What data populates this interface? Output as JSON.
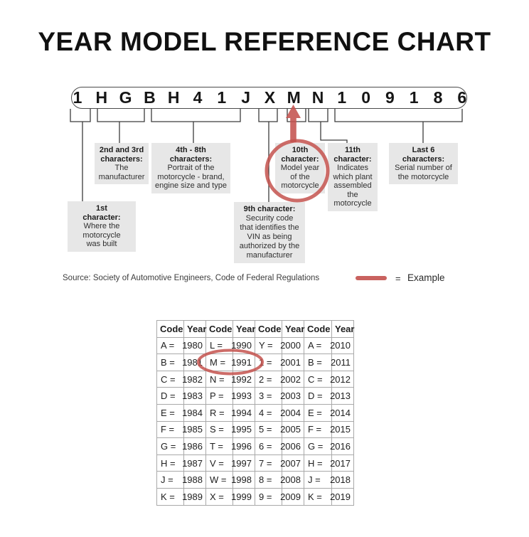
{
  "title": "YEAR MODEL REFERENCE CHART",
  "vin": {
    "chars": [
      "1",
      "H",
      "G",
      "B",
      "H",
      "4",
      "1",
      "J",
      "X",
      "M",
      "N",
      "1",
      "0",
      "9",
      "1",
      "8",
      "6"
    ]
  },
  "callouts": {
    "first": {
      "title": "1st\ncharacter:",
      "body": "Where the\nmotorcycle\nwas built"
    },
    "second_third": {
      "title": "2nd and 3rd\ncharacters:",
      "body": "The\nmanufacturer"
    },
    "fourth_eighth": {
      "title": "4th - 8th\ncharacters:",
      "body": "Portrait of the\nmotorcycle - brand,\nengine size and type"
    },
    "ninth": {
      "title": "9th character:",
      "body": "Security code\nthat identifies the\nVIN as being\nauthorized by the\nmanufacturer"
    },
    "tenth": {
      "title": "10th\ncharacter:",
      "body": "Model year\nof the\nmotorcycle"
    },
    "eleventh": {
      "title": "11th\ncharacter:",
      "body": "Indicates\nwhich plant\nassembled\nthe\nmotorcycle"
    },
    "last6": {
      "title": "Last 6\ncharacters:",
      "body": "Serial number of\nthe motorcycle"
    }
  },
  "source_line": "Source:  Society of Automotive Engineers, Code of Federal Regulations",
  "legend": {
    "equals": "=",
    "label": "Example"
  },
  "colors": {
    "accent_red": "#c4524e",
    "callout_bg": "#e7e7e7",
    "table_border": "#a9a9a9"
  },
  "table": {
    "headers": [
      "Code",
      "Year",
      "Code",
      "Year",
      "Code",
      "Year",
      "Code",
      "Year"
    ],
    "rows": [
      [
        "A =",
        "1980",
        "L =",
        "1990",
        "Y =",
        "2000",
        "A =",
        "2010"
      ],
      [
        "B =",
        "1981",
        "M =",
        "1991",
        "1 =",
        "2001",
        "B =",
        "2011"
      ],
      [
        "C =",
        "1982",
        "N =",
        "1992",
        "2 =",
        "2002",
        "C =",
        "2012"
      ],
      [
        "D =",
        "1983",
        "P =",
        "1993",
        "3 =",
        "2003",
        "D =",
        "2013"
      ],
      [
        "E =",
        "1984",
        "R =",
        "1994",
        "4 =",
        "2004",
        "E =",
        "2014"
      ],
      [
        "F =",
        "1985",
        "S =",
        "1995",
        "5 =",
        "2005",
        "F =",
        "2015"
      ],
      [
        "G =",
        "1986",
        "T =",
        "1996",
        "6 =",
        "2006",
        "G =",
        "2016"
      ],
      [
        "H =",
        "1987",
        "V =",
        "1997",
        "7 =",
        "2007",
        "H =",
        "2017"
      ],
      [
        "J =",
        "1988",
        "W =",
        "1998",
        "8 =",
        "2008",
        "J =",
        "2018"
      ],
      [
        "K =",
        "1989",
        "X =",
        "1999",
        "9 =",
        "2009",
        "K =",
        "2019"
      ]
    ]
  }
}
